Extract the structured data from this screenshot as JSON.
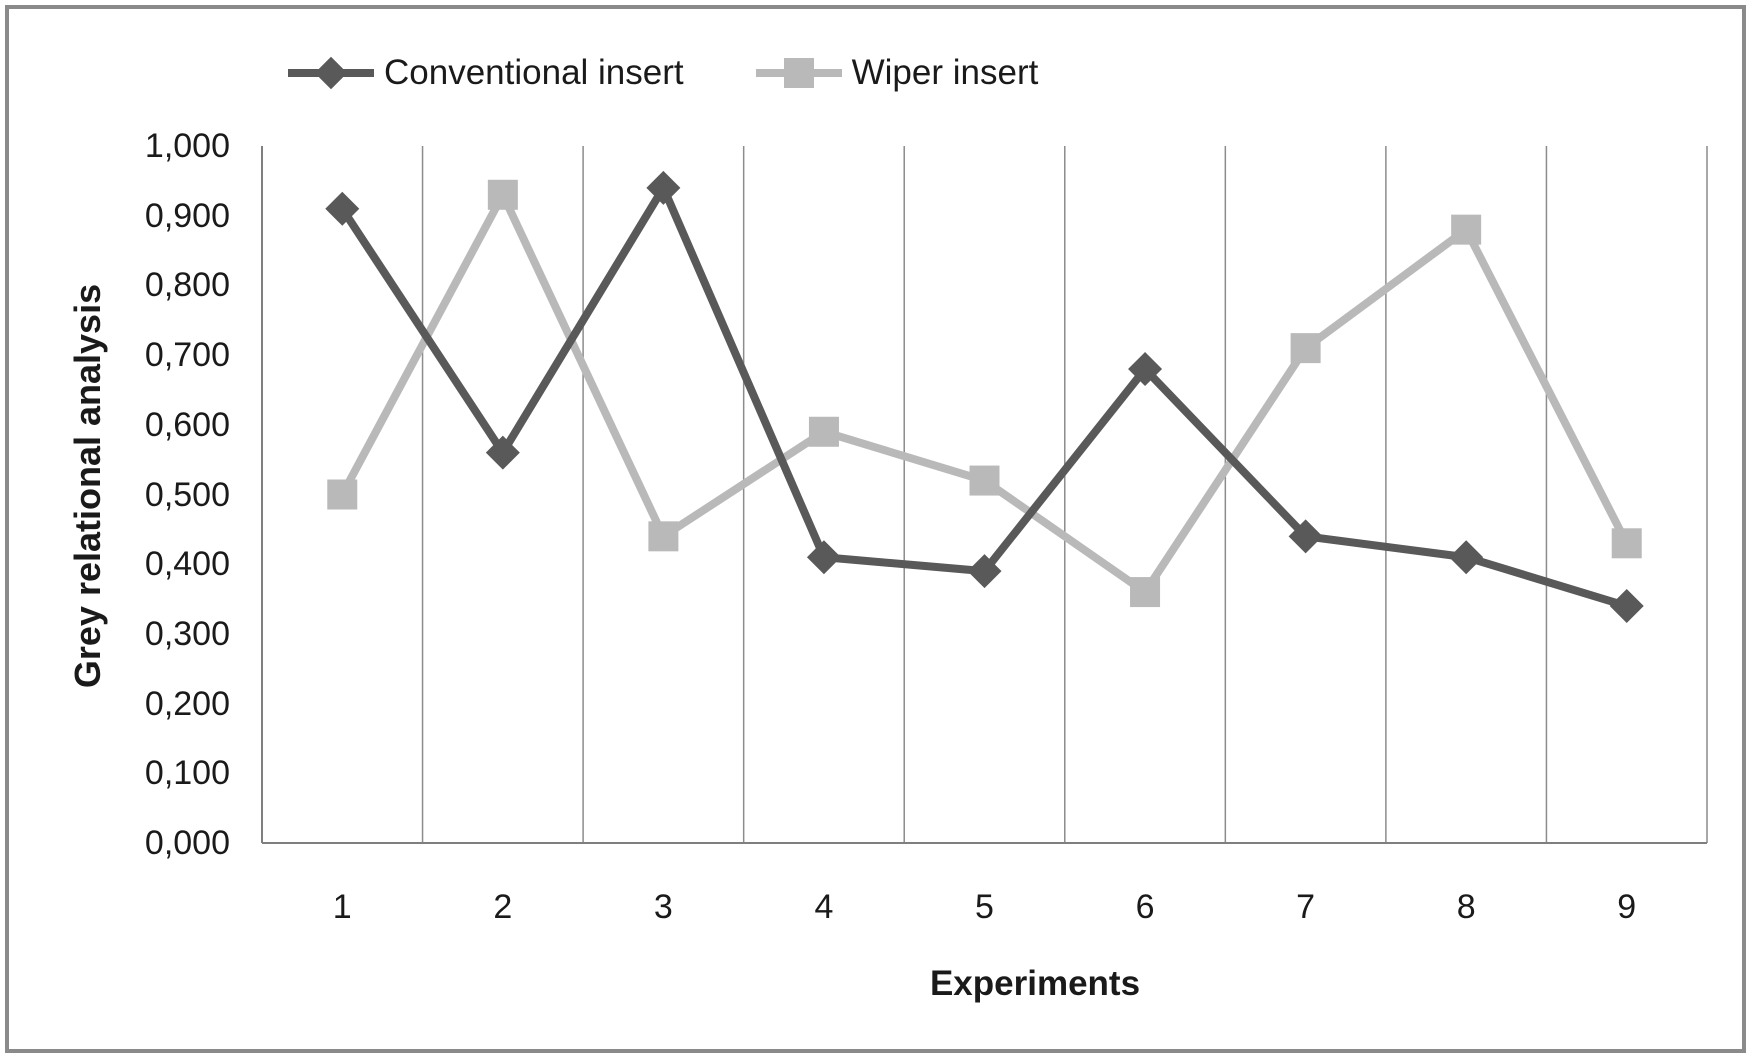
{
  "chart_data": {
    "type": "line",
    "title": "",
    "xlabel": "Experiments",
    "ylabel": "Grey relational analysis",
    "categories": [
      "1",
      "2",
      "3",
      "4",
      "5",
      "6",
      "7",
      "8",
      "9"
    ],
    "series": [
      {
        "name": "Conventional insert",
        "marker": "diamond",
        "color": "#595959",
        "values": [
          0.91,
          0.56,
          0.94,
          0.41,
          0.39,
          0.68,
          0.44,
          0.41,
          0.34
        ]
      },
      {
        "name": "Wiper insert",
        "marker": "square",
        "color": "#b9b9b9",
        "values": [
          0.5,
          0.93,
          0.44,
          0.59,
          0.52,
          0.36,
          0.71,
          0.88,
          0.43
        ]
      }
    ],
    "ylim": [
      0,
      1
    ],
    "ytick_values": [
      0,
      0.1,
      0.2,
      0.3,
      0.4,
      0.5,
      0.6,
      0.7,
      0.8,
      0.9,
      1.0
    ],
    "ytick_labels": [
      "0,000",
      "0,100",
      "0,200",
      "0,300",
      "0,400",
      "0,500",
      "0,600",
      "0,700",
      "0,800",
      "0,900",
      "1,000"
    ],
    "decimal_separator": ",",
    "grid": "vertical-only",
    "legend_position": "top",
    "draw_order_note": "dark series drawn on top"
  },
  "colors": {
    "background": "#ffffff",
    "frame_border": "#8a8a8a",
    "gridline": "#8c8c8c",
    "axis_line": "#7f7f7f",
    "text": "#1a1a1a"
  }
}
